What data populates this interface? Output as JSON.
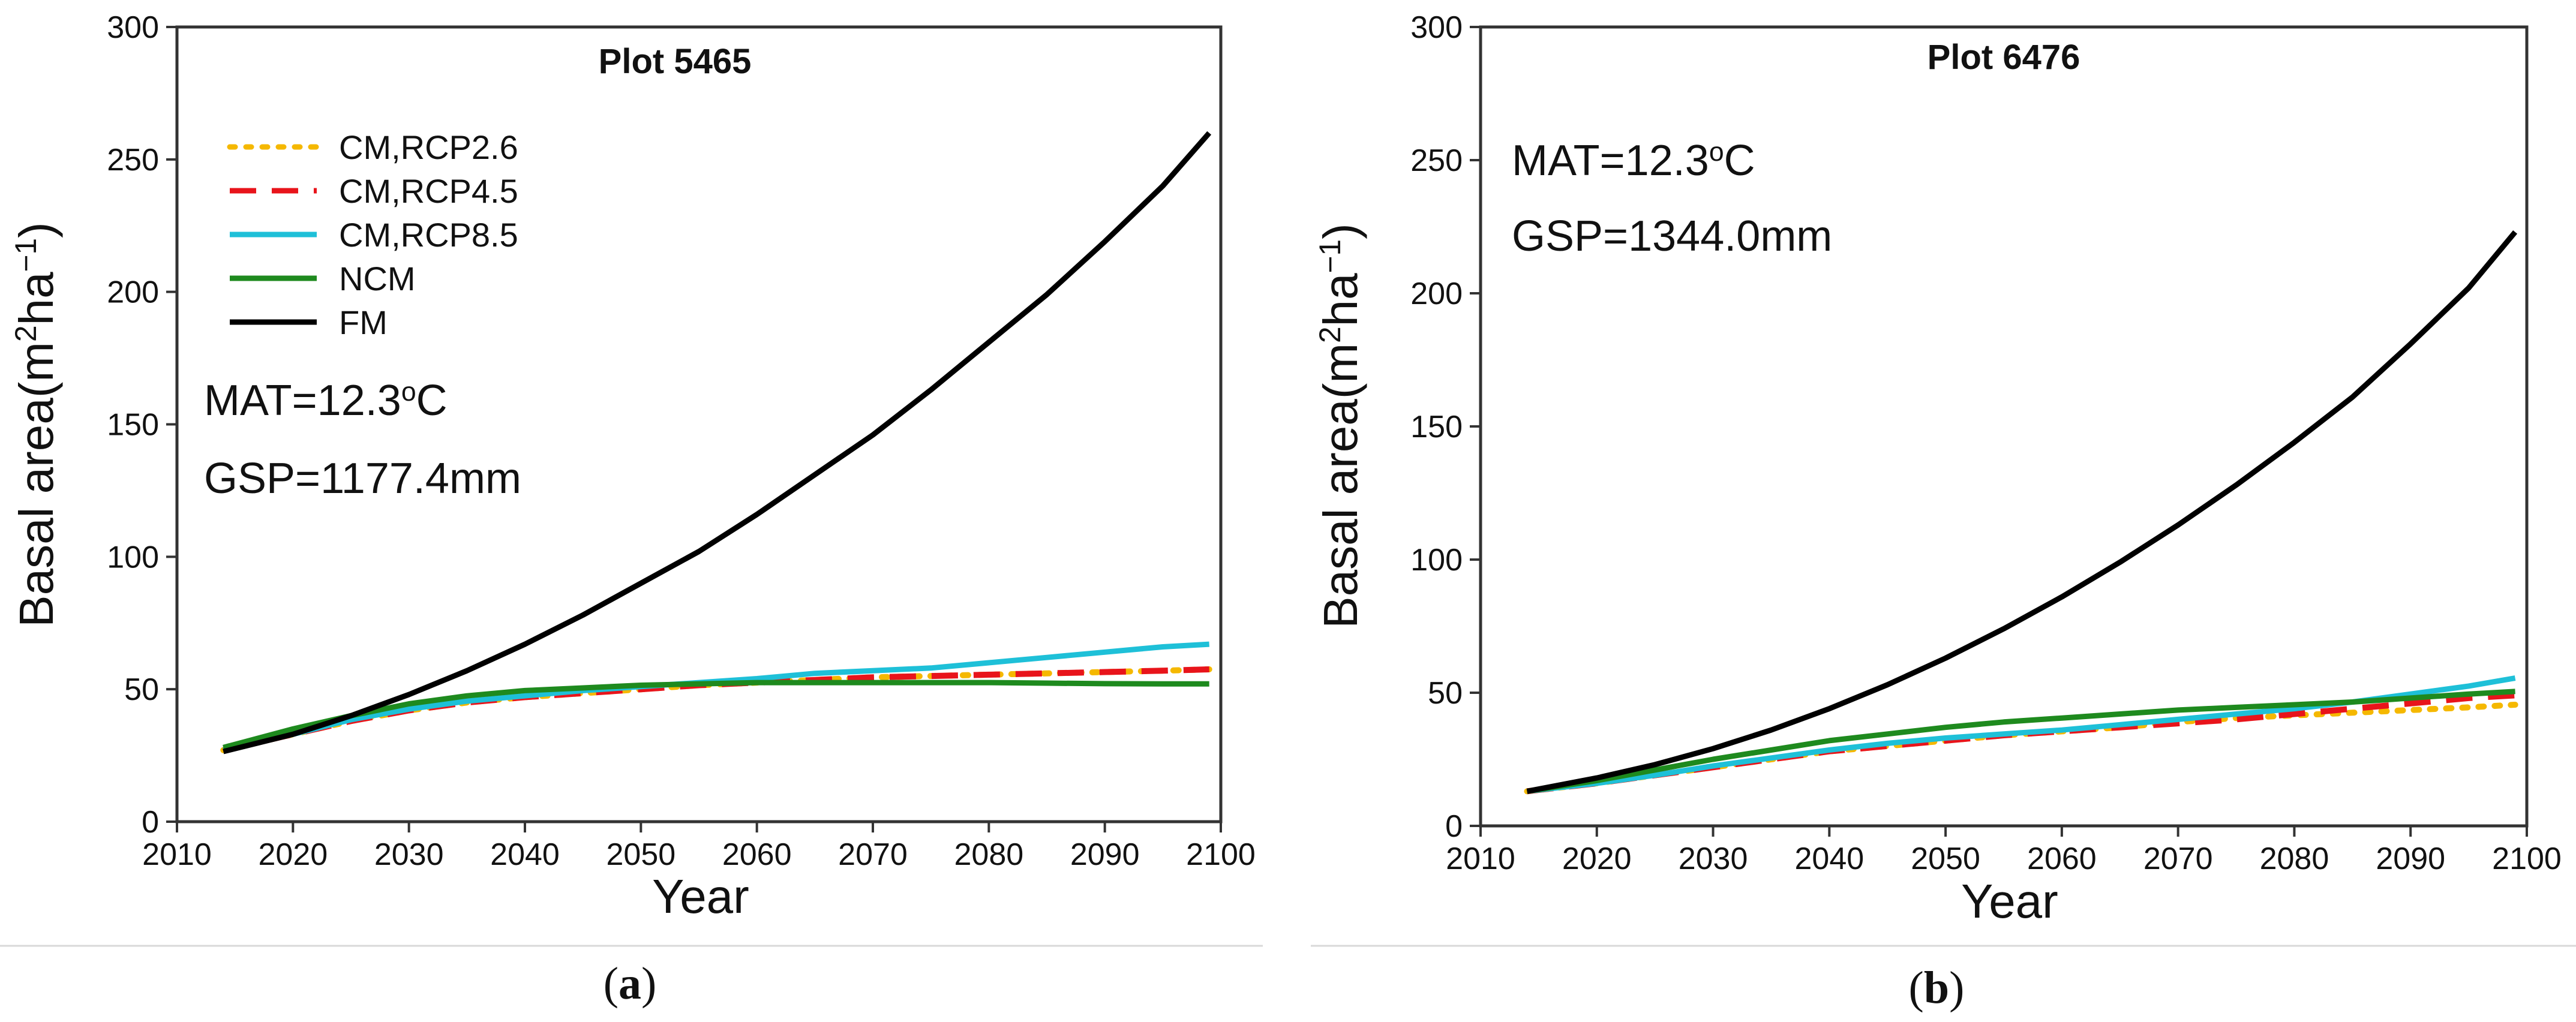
{
  "figure": {
    "panels": [
      {
        "caption_letter": "a",
        "mat_prefix": "MAT=12.3",
        "mat_suffix": "C",
        "gsp": "GSP=1177.4mm"
      },
      {
        "caption_letter": "b",
        "mat_prefix": "MAT=12.3",
        "mat_suffix": "C",
        "gsp": "GSP=1344.0mm"
      }
    ],
    "degree_symbol": "o",
    "caption_open": "(",
    "caption_close": ")"
  },
  "chart_data": [
    {
      "type": "line",
      "title": "Plot 5465",
      "xlabel": "Year",
      "ylabel_parts": [
        "Basal area(m",
        "2",
        "ha",
        "−1",
        ")"
      ],
      "xlim": [
        2010,
        2100
      ],
      "ylim": [
        0,
        300
      ],
      "xticks": [
        2010,
        2020,
        2030,
        2040,
        2050,
        2060,
        2070,
        2080,
        2090,
        2100
      ],
      "yticks": [
        0,
        50,
        100,
        150,
        200,
        250,
        300
      ],
      "legend_position": "top-left",
      "x": [
        2014,
        2020,
        2025,
        2030,
        2035,
        2040,
        2045,
        2050,
        2055,
        2060,
        2065,
        2070,
        2075,
        2080,
        2085,
        2090,
        2095,
        2099
      ],
      "series": [
        {
          "name": "CM,RCP2.6",
          "color": "#F5B800",
          "style": "dotted",
          "values": [
            27,
            33,
            38,
            42,
            45,
            47,
            48.5,
            50,
            51.5,
            52.5,
            53.5,
            54.5,
            55,
            55.5,
            56,
            56.5,
            57,
            57.5
          ]
        },
        {
          "name": "CM,RCP4.5",
          "color": "#E8141B",
          "style": "dashed",
          "values": [
            27,
            33,
            38,
            42,
            45,
            47,
            48.5,
            50,
            51.5,
            52.5,
            53.5,
            54.5,
            55,
            55.5,
            56,
            56.5,
            57,
            57.5
          ]
        },
        {
          "name": "CM,RCP8.5",
          "color": "#1EC0D8",
          "style": "solid",
          "values": [
            27,
            33,
            38.5,
            42.5,
            45.5,
            47.5,
            49.5,
            51,
            52.5,
            54,
            56,
            57,
            58,
            60,
            62,
            64,
            66,
            67
          ]
        },
        {
          "name": "NCM",
          "color": "#1E8A1E",
          "style": "solid",
          "values": [
            28,
            35,
            40,
            44.5,
            47.5,
            49.5,
            50.5,
            51.5,
            52,
            52.5,
            52.5,
            52.5,
            52.5,
            52.5,
            52.3,
            52.1,
            52,
            52
          ]
        },
        {
          "name": "FM",
          "color": "#000000",
          "style": "solid",
          "values": [
            26.5,
            33,
            40,
            48,
            57,
            67,
            78,
            90,
            102,
            116,
            131,
            146,
            163,
            181,
            199,
            219,
            240,
            260
          ]
        }
      ]
    },
    {
      "type": "line",
      "title": "Plot 6476",
      "xlabel": "Year",
      "ylabel_parts": [
        "Basal area(m",
        "2",
        "ha",
        "−1",
        ")"
      ],
      "xlim": [
        2010,
        2100
      ],
      "ylim": [
        0,
        300
      ],
      "xticks": [
        2010,
        2020,
        2030,
        2040,
        2050,
        2060,
        2070,
        2080,
        2090,
        2100
      ],
      "yticks": [
        0,
        50,
        100,
        150,
        200,
        250,
        300
      ],
      "legend_position": "none",
      "x": [
        2014,
        2020,
        2025,
        2030,
        2035,
        2040,
        2045,
        2050,
        2055,
        2060,
        2065,
        2070,
        2075,
        2080,
        2085,
        2090,
        2095,
        2099
      ],
      "series": [
        {
          "name": "CM,RCP2.6",
          "color": "#F5B800",
          "style": "dotted",
          "values": [
            13,
            16,
            19,
            22,
            25,
            28,
            30,
            32,
            34,
            35.5,
            37,
            39,
            40.5,
            41.5,
            42.5,
            43.5,
            44.5,
            45.5
          ]
        },
        {
          "name": "CM,RCP4.5",
          "color": "#E8141B",
          "style": "dashed",
          "values": [
            13,
            16,
            19,
            22,
            25,
            28,
            30,
            32,
            34,
            35.5,
            37,
            38.5,
            40,
            42,
            44,
            46,
            48,
            49
          ]
        },
        {
          "name": "CM,RCP8.5",
          "color": "#1EC0D8",
          "style": "solid",
          "values": [
            13,
            16,
            19,
            22.5,
            25.5,
            28.5,
            31,
            33,
            34.5,
            36,
            38,
            40,
            42,
            44,
            46.5,
            49.5,
            52.5,
            55.5
          ]
        },
        {
          "name": "NCM",
          "color": "#1E8A1E",
          "style": "solid",
          "values": [
            13,
            17,
            21,
            25,
            28.5,
            32,
            34.5,
            37,
            39,
            40.5,
            42,
            43.5,
            44.5,
            45.5,
            46.5,
            48,
            49.5,
            50.5
          ]
        },
        {
          "name": "FM",
          "color": "#000000",
          "style": "solid",
          "values": [
            13,
            18,
            23,
            29,
            36,
            44,
            53,
            63,
            74,
            86,
            99,
            113,
            128,
            144,
            161,
            181,
            202,
            223
          ]
        }
      ]
    }
  ]
}
